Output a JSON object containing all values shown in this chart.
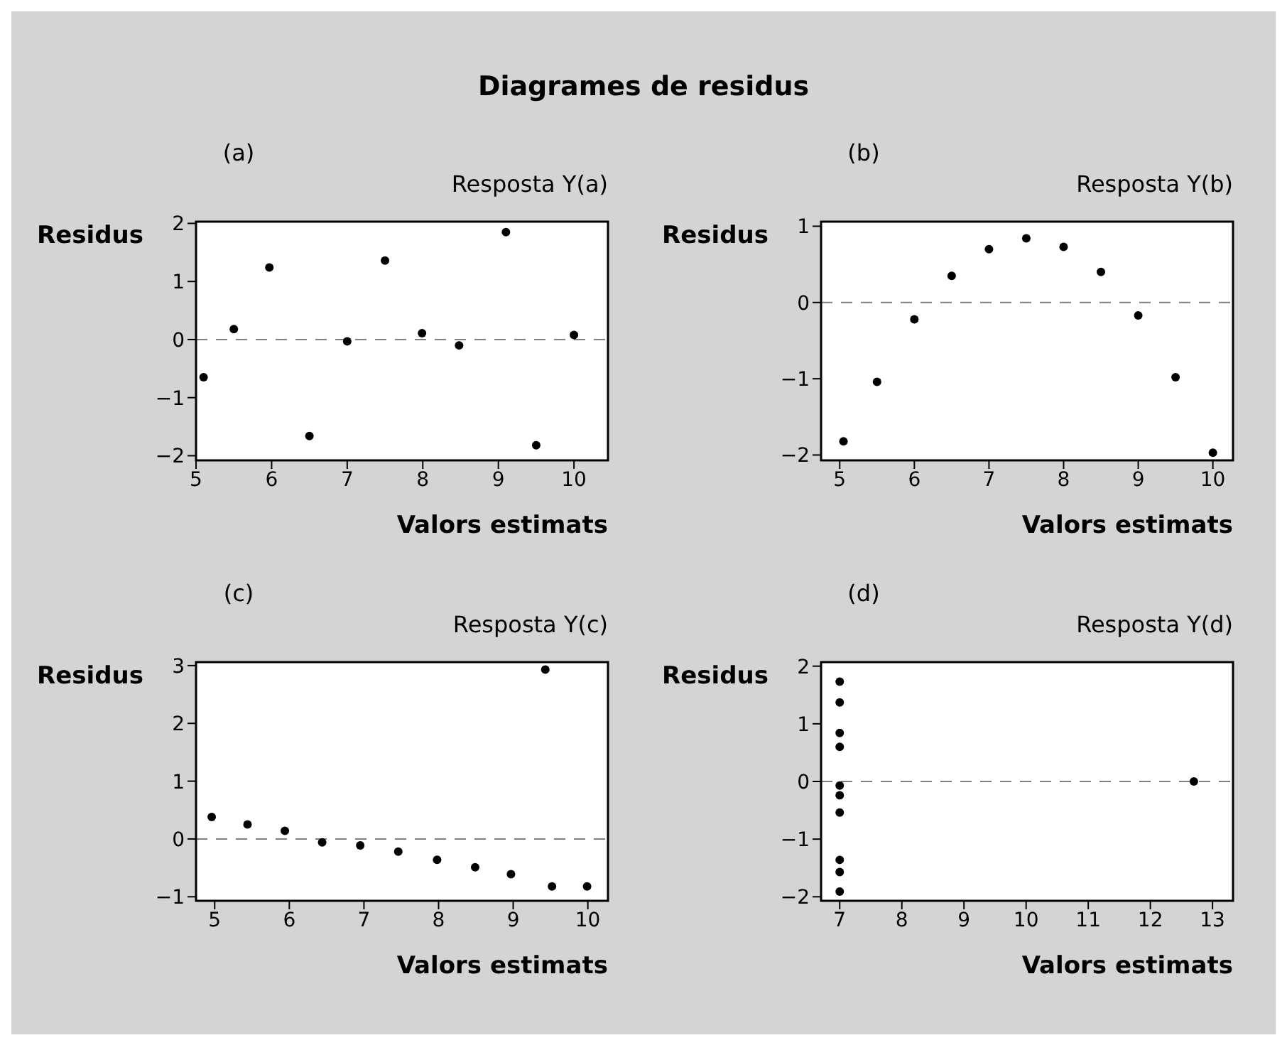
{
  "chart_data": [
    {
      "type": "scatter",
      "annotations": [
        "Diagrames de residus"
      ],
      "title": "(a)",
      "subtitle": "Resposta Y(a)",
      "xlabel": "Valors estimats",
      "ylabel": "Residus",
      "x": [
        5.1,
        5.5,
        5.97,
        6.5,
        7.0,
        7.5,
        7.99,
        8.48,
        9.1,
        9.5,
        10.0
      ],
      "values": [
        -0.65,
        0.18,
        1.24,
        -1.66,
        -0.03,
        1.36,
        0.11,
        -0.1,
        1.85,
        -1.82,
        0.08
      ],
      "color": "#000000",
      "marker": "circle",
      "xlim": [
        5,
        10.45
      ],
      "xticks": [
        5,
        6,
        7,
        8,
        9,
        10
      ],
      "ylim": [
        -2.08,
        2.03
      ],
      "yticks": [
        -2,
        -1,
        0,
        1,
        2
      ],
      "ref_lines": [
        {
          "axis": "y",
          "value": 0,
          "color": "#808080",
          "line_style": "dashed"
        }
      ]
    },
    {
      "type": "scatter",
      "title": "(b)",
      "subtitle": "Resposta Y(b)",
      "xlabel": "Valors estimats",
      "ylabel": "Residus",
      "x": [
        5.05,
        5.5,
        6.0,
        6.5,
        7.0,
        7.5,
        8.0,
        8.5,
        9.0,
        9.5,
        10.0
      ],
      "values": [
        -1.82,
        -1.04,
        -0.22,
        0.35,
        0.7,
        0.84,
        0.73,
        0.4,
        -0.17,
        -0.98,
        -1.97
      ],
      "color": "#000000",
      "marker": "circle",
      "xlim": [
        4.75,
        10.27
      ],
      "xticks": [
        5,
        6,
        7,
        8,
        9,
        10
      ],
      "ylim": [
        -2.07,
        1.06
      ],
      "yticks": [
        -2,
        -1,
        0,
        1
      ],
      "ref_lines": [
        {
          "axis": "y",
          "value": 0,
          "color": "#808080",
          "line_style": "dashed"
        }
      ]
    },
    {
      "type": "scatter",
      "title": "(c)",
      "subtitle": "Resposta Y(c)",
      "xlabel": "Valors estimats",
      "ylabel": "Residus",
      "x": [
        4.96,
        5.44,
        5.94,
        6.44,
        6.95,
        7.46,
        7.98,
        8.49,
        8.97,
        9.43,
        9.52,
        9.99
      ],
      "values": [
        0.38,
        0.25,
        0.14,
        -0.06,
        -0.11,
        -0.22,
        -0.36,
        -0.49,
        -0.61,
        2.93,
        -0.82,
        -0.82
      ],
      "color": "#000000",
      "marker": "circle",
      "xlim": [
        4.75,
        10.27
      ],
      "xticks": [
        5,
        6,
        7,
        8,
        9,
        10
      ],
      "ylim": [
        -1.07,
        3.06
      ],
      "yticks": [
        -1,
        0,
        1,
        2,
        3
      ],
      "ref_lines": [
        {
          "axis": "y",
          "value": 0,
          "color": "#808080",
          "line_style": "dashed"
        }
      ]
    },
    {
      "type": "scatter",
      "title": "(d)",
      "subtitle": "Resposta Y(d)",
      "xlabel": "Valors estimats",
      "ylabel": "Residus",
      "x": [
        7.0,
        7.0,
        7.0,
        7.0,
        7.0,
        7.0,
        7.0,
        7.0,
        7.0,
        7.0,
        12.7
      ],
      "values": [
        1.73,
        1.37,
        0.84,
        0.6,
        -0.07,
        -0.24,
        -0.54,
        -1.36,
        -1.57,
        -1.91,
        0
      ],
      "color": "#000000",
      "marker": "circle",
      "xlim": [
        6.7,
        13.33
      ],
      "xticks": [
        7,
        8,
        9,
        10,
        11,
        12,
        13
      ],
      "ylim": [
        -2.07,
        2.07
      ],
      "yticks": [
        -2,
        -1,
        0,
        1,
        2
      ],
      "ref_lines": [
        {
          "axis": "y",
          "value": 0,
          "color": "#808080",
          "line_style": "dashed"
        }
      ]
    }
  ]
}
